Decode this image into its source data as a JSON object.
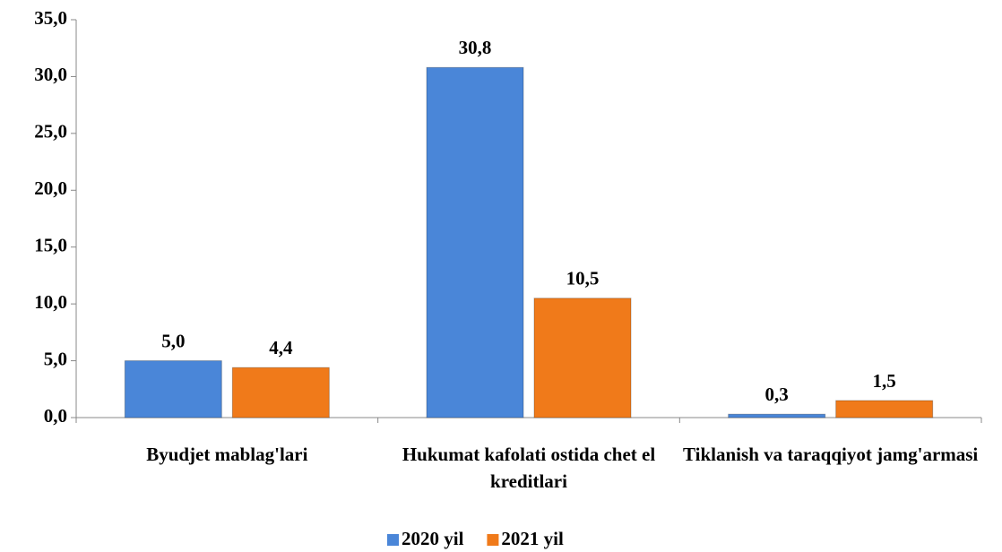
{
  "chart_data": {
    "type": "bar",
    "categories": [
      "Byudjet mablag'lari",
      "Hukumat kafolati ostida chet el kreditlari",
      "Tiklanish va taraqqiyot jamg'armasi"
    ],
    "series": [
      {
        "name": "2020 yil",
        "color": "#4a86d8",
        "values": [
          5.0,
          30.8,
          0.3
        ],
        "value_labels": [
          "5,0",
          "30,8",
          "0,3"
        ]
      },
      {
        "name": "2021 yil",
        "color": "#f07a1a",
        "values": [
          4.4,
          10.5,
          1.5
        ],
        "value_labels": [
          "4,4",
          "10,5",
          "1,5"
        ]
      }
    ],
    "ylim": [
      0,
      35
    ],
    "yticks": [
      {
        "value": 0,
        "label": "0,0"
      },
      {
        "value": 5,
        "label": "5,0"
      },
      {
        "value": 10,
        "label": "10,0"
      },
      {
        "value": 15,
        "label": "15,0"
      },
      {
        "value": 20,
        "label": "20,0"
      },
      {
        "value": 25,
        "label": "25,0"
      },
      {
        "value": 30,
        "label": "30,0"
      },
      {
        "value": 35,
        "label": "35,0"
      }
    ],
    "grid": false,
    "legend": "bottom"
  }
}
